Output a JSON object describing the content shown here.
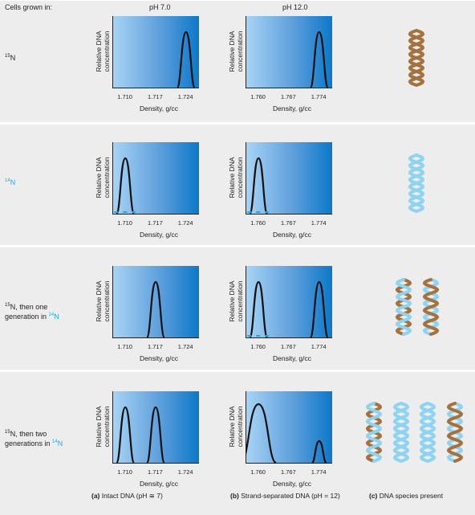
{
  "headers": {
    "cells_grown_in": "Cells grown in:",
    "col_a": "pH 7.0",
    "col_b": "pH 12.0"
  },
  "rows": [
    {
      "label_sup": "15",
      "label": "N",
      "label_color": "#222222"
    },
    {
      "label_sup": "14",
      "label": "N",
      "label_color": "#2ba5d9"
    },
    {
      "line1_sup": "15",
      "line1": "N, then one",
      "line2": "generation in ",
      "line2_sup": "14",
      "line2_end": "N"
    },
    {
      "line1_sup": "15",
      "line1": "N, then two",
      "line2": "generations in ",
      "line2_sup": "14",
      "line2_end": "N"
    }
  ],
  "y_axis_label": [
    "Relative DNA",
    "concentration"
  ],
  "x_axis_label": "Density, g/cc",
  "ticks_a": [
    "1.710",
    "1.717",
    "1.724"
  ],
  "ticks_b": [
    "1.760",
    "1.767",
    "1.774"
  ],
  "footers": {
    "a_bold": "(a)",
    "a_text": " Intact DNA (pH ≅ 7)",
    "b_bold": "(b)",
    "b_text": " Strand-separated DNA (pH = 12)",
    "c_bold": "(c)",
    "c_text": " DNA species present"
  },
  "colors": {
    "heavy_strand": "#a5713f",
    "light_strand": "#8fd3f2",
    "gradient_light": "#a9d4f4",
    "gradient_dark": "#0c78c8"
  },
  "icons": [
    "heavy-dna-helix-icon",
    "light-dna-helix-icon"
  ],
  "panels_peaks": {
    "row1": {
      "a": [
        0.85
      ],
      "b": [
        0.85
      ]
    },
    "row2": {
      "a": [
        0.15
      ],
      "b": [
        0.15
      ]
    },
    "row3": {
      "a": [
        0.5
      ],
      "b": [
        0.15,
        0.85
      ]
    },
    "row4": {
      "a": [
        0.15,
        0.5
      ],
      "b": [
        0.15,
        0.85
      ]
    }
  }
}
